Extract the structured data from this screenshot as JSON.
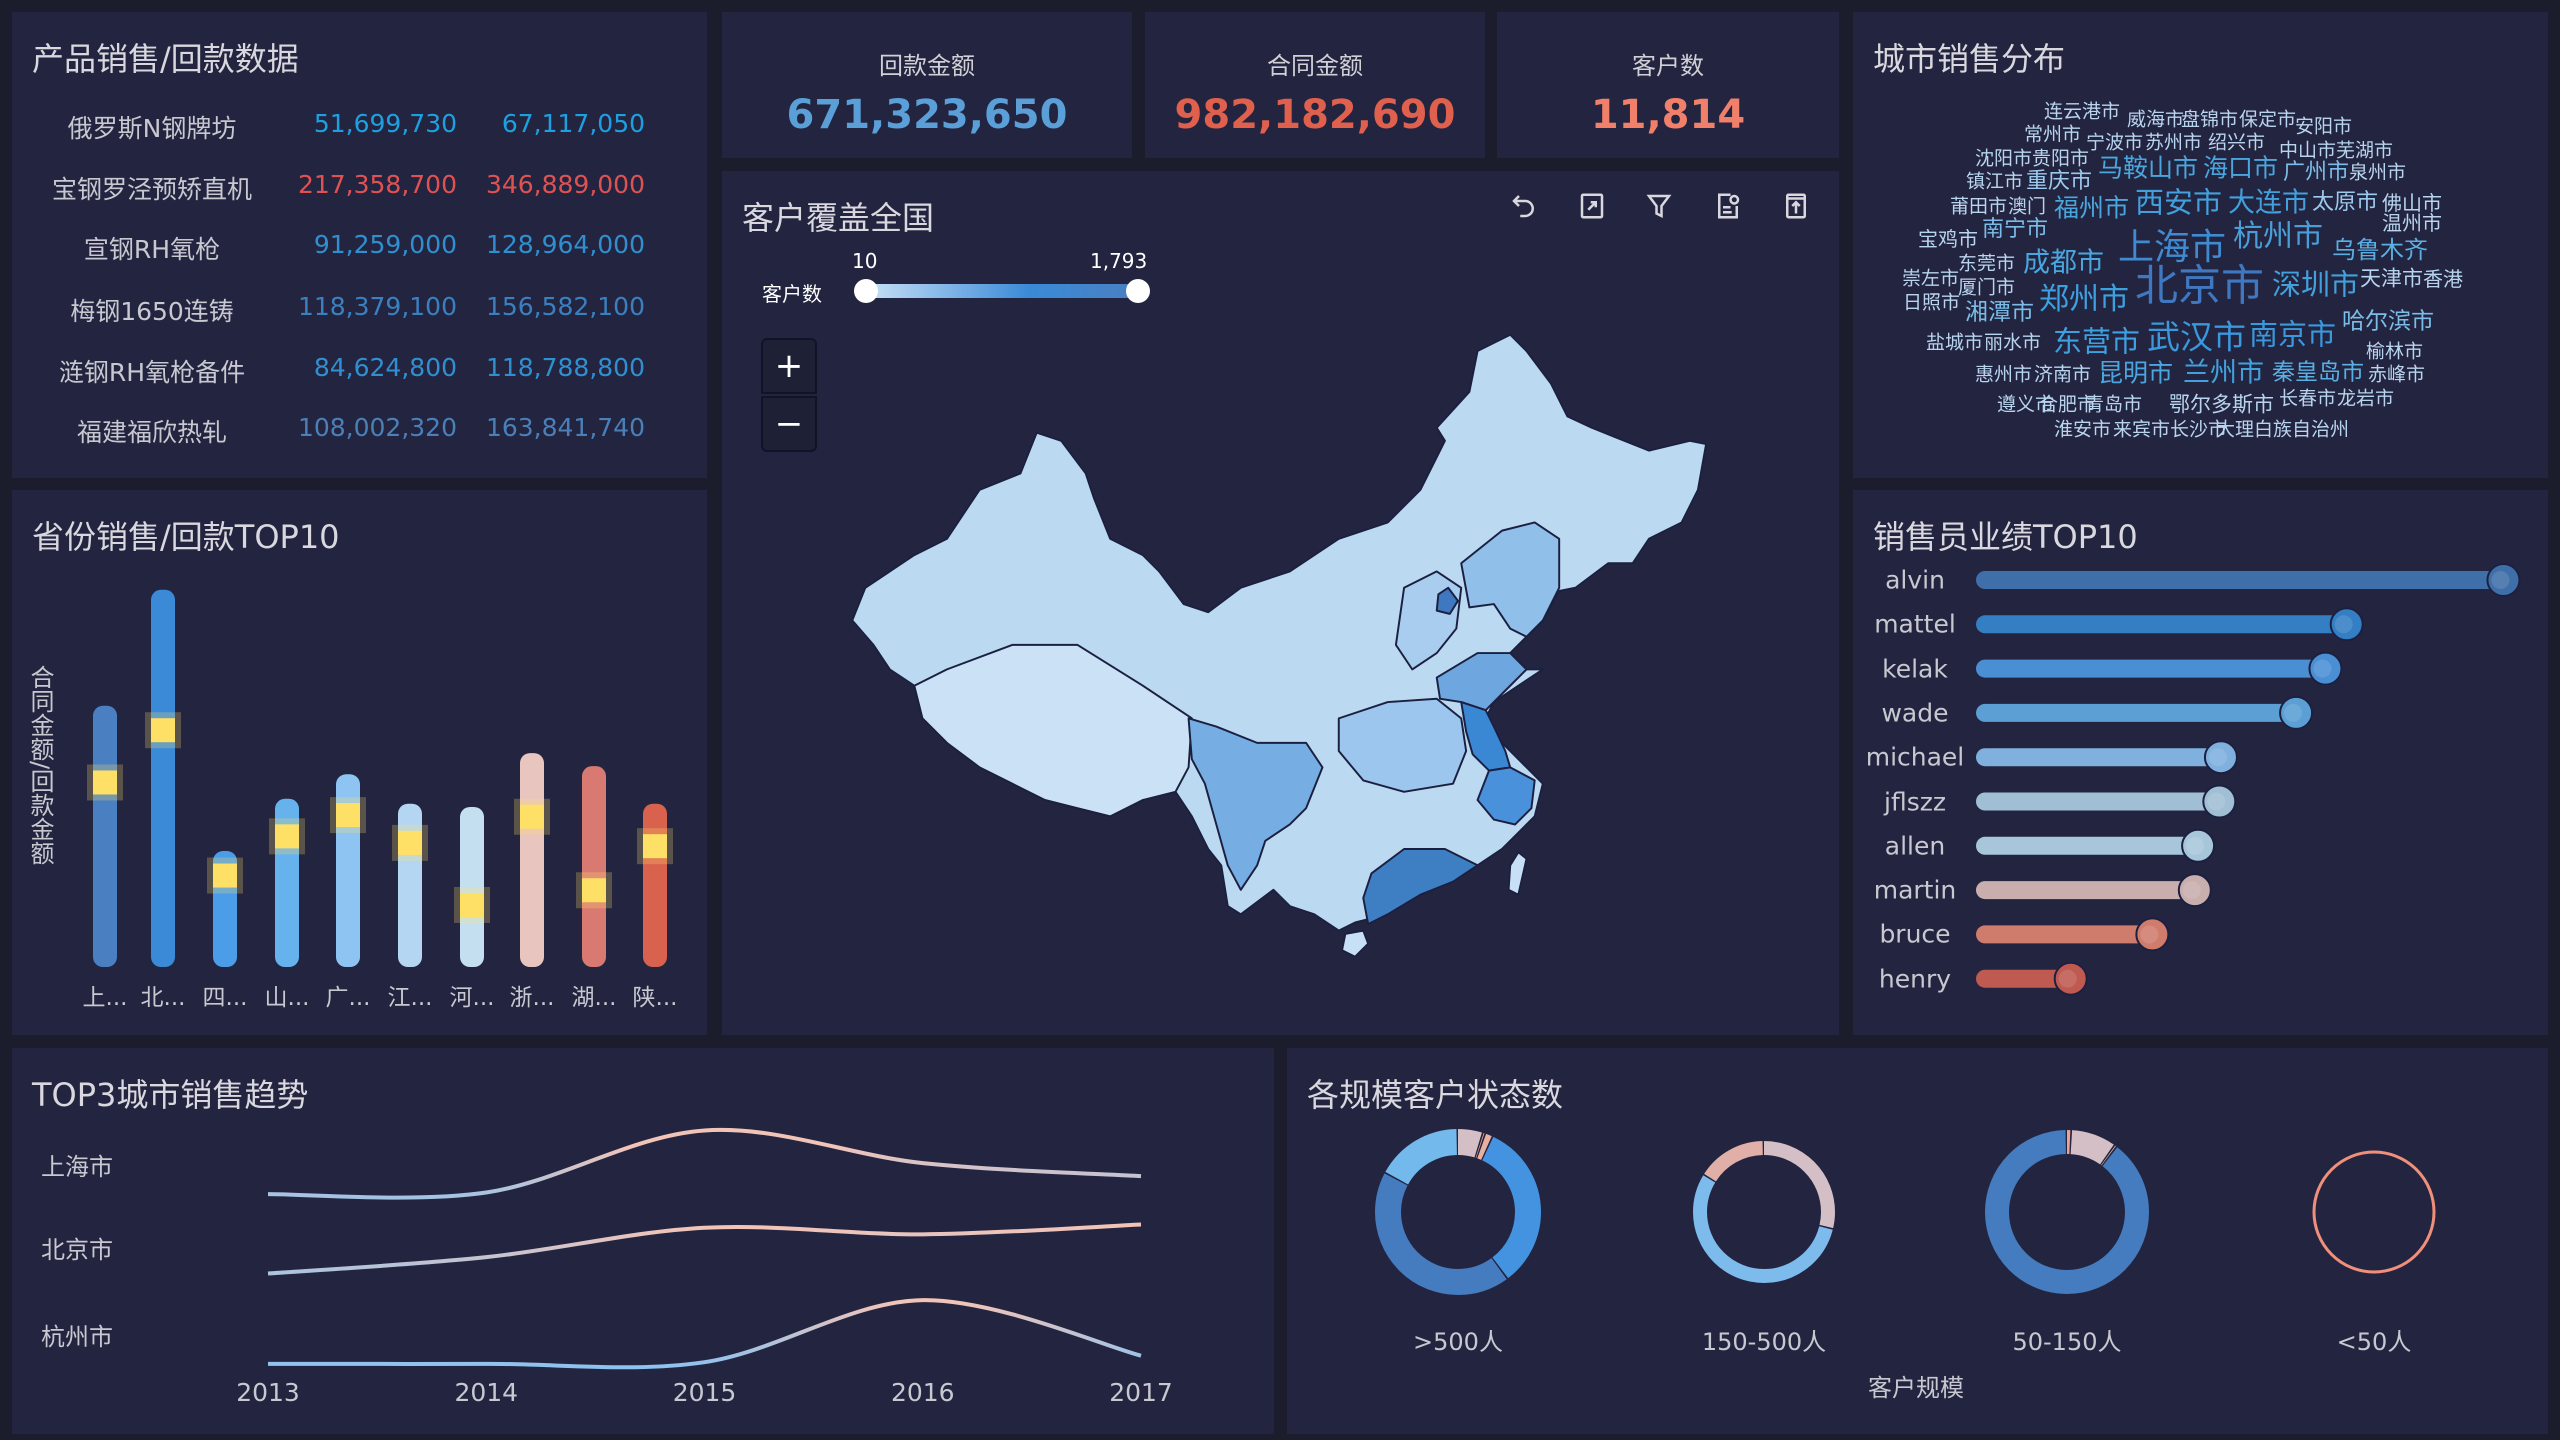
{
  "product_table": {
    "title": "产品销售/回款数据",
    "rows": [
      {
        "name": "俄罗斯N钢牌坊",
        "v1": "51,699,730",
        "v2": "67,117,050",
        "color": "#1ea0e0"
      },
      {
        "name": "宝钢罗泾预矫直机",
        "v1": "217,358,700",
        "v2": "346,889,000",
        "color": "#e05252"
      },
      {
        "name": "宣钢RH氧枪",
        "v1": "91,259,000",
        "v2": "128,964,000",
        "color": "#2f8fd0"
      },
      {
        "name": "梅钢1650连铸",
        "v1": "118,379,100",
        "v2": "156,582,100",
        "color": "#3a80c0"
      },
      {
        "name": "涟钢RH氧枪备件",
        "v1": "84,624,800",
        "v2": "118,788,800",
        "color": "#2f8fd0"
      },
      {
        "name": "福建福欣热轧",
        "v1": "108,002,320",
        "v2": "163,841,740",
        "color": "#4a7fb8"
      }
    ]
  },
  "kpis": [
    {
      "label": "回款金额",
      "value": "671,323,650",
      "color": "#5b9fd8"
    },
    {
      "label": "合同金额",
      "value": "982,182,690",
      "color": "#e0604e"
    },
    {
      "label": "客户数",
      "value": "11,814",
      "color": "#f0806a"
    }
  ],
  "map": {
    "title": "客户覆盖全国",
    "slider_label": "客户数",
    "slider_min": "10",
    "slider_max": "1,793",
    "zoom_in": "+",
    "zoom_out": "−",
    "tools": [
      "undo-icon",
      "expand-icon",
      "filter-icon",
      "data-view-icon",
      "export-icon"
    ]
  },
  "wordcloud": {
    "title": "城市销售分布",
    "words": [
      "连云港市",
      "威海市",
      "盘锦市",
      "保定市",
      "安阳市",
      "常州市",
      "宁波市",
      "苏州市",
      "绍兴市",
      "中山市",
      "芜湖市",
      "沈阳市",
      "贵阳市",
      "马鞍山市",
      "海口市",
      "广州市",
      "泉州市",
      "镇江市",
      "重庆市",
      "莆田市",
      "澳门",
      "福州市",
      "西安市",
      "大连市",
      "太原市",
      "佛山市",
      "温州市",
      "南宁市",
      "宝鸡市",
      "上海市",
      "杭州市",
      "乌鲁木齐",
      "东莞市",
      "成都市",
      "崇左市",
      "北京市",
      "深圳市",
      "天津市",
      "香港",
      "厦门市",
      "日照市",
      "郑州市",
      "湘潭市",
      "哈尔滨市",
      "东营市",
      "武汉市",
      "南京市",
      "盐城市",
      "丽水市",
      "榆林市",
      "惠州市",
      "济南市",
      "昆明市",
      "兰州市",
      "秦皇岛市",
      "赤峰市",
      "遵义市",
      "合肥市",
      "青岛市",
      "鄂尔多斯市",
      "长春市",
      "龙岩市",
      "淮安市",
      "来宾市",
      "长沙市",
      "大理白族自治州"
    ]
  },
  "chart_data": [
    {
      "type": "bar",
      "title": "省份销售/回款TOP10",
      "ylabel": "合同金额/回款金额",
      "categories": [
        "上...",
        "北...",
        "四...",
        "山...",
        "广...",
        "江...",
        "河...",
        "浙...",
        "湖...",
        "陕..."
      ],
      "series": [
        {
          "values": [
            160,
            231,
            71,
            103,
            118,
            100,
            98,
            131,
            123,
            100
          ],
          "colors": [
            "#4a7fc1",
            "#3a8ad8",
            "#4a9de6",
            "#66b2ec",
            "#8ec4f2",
            "#b5d6f2",
            "#c4e0f0",
            "#e8c6bf",
            "#d97a72",
            "#d9624f"
          ]
        },
        {
          "values": [
            113,
            145,
            56,
            80,
            93,
            76,
            38,
            92,
            47,
            74
          ],
          "color": "#ffe066"
        }
      ]
    },
    {
      "type": "bar",
      "orientation": "horizontal",
      "title": "销售员业绩TOP10",
      "categories": [
        "alvin",
        "mattel",
        "kelak",
        "wade",
        "michael",
        "jflszz",
        "allen",
        "martin",
        "bruce",
        "henry"
      ],
      "values": [
        323,
        227,
        214,
        196,
        150,
        149,
        136,
        134,
        108,
        58
      ],
      "colors": [
        "#3f6fa8",
        "#347ec4",
        "#4a8fd4",
        "#5b9fd4",
        "#7fb0de",
        "#a0bed4",
        "#a8c6da",
        "#c9aeae",
        "#d07c6d",
        "#bf5a50"
      ]
    },
    {
      "type": "line",
      "title": "TOP3城市销售趋势",
      "x": [
        "2013",
        "2014",
        "2015",
        "2016",
        "2017"
      ],
      "series": [
        {
          "name": "上海市",
          "values": [
            14,
            15,
            53,
            33,
            25
          ]
        },
        {
          "name": "北京市",
          "values": [
            15,
            25,
            43,
            39,
            45
          ]
        },
        {
          "name": "杭州市",
          "values": [
            5,
            5,
            6,
            44,
            10
          ]
        }
      ]
    },
    {
      "type": "pie",
      "title": "各规模客户状态数",
      "xlabel": "客户规模",
      "groups": [
        {
          "label": ">500人",
          "slices": [
            0.05,
            0.005,
            0.015,
            0.33,
            0.43,
            0.17
          ],
          "colors": [
            "#d4bfc6",
            "#f0a090",
            "#e8b0a0",
            "#4393e0",
            "#447cbf",
            "#74b9ec"
          ]
        },
        {
          "label": "150-500人",
          "slices": [
            0.29,
            0.55,
            0.16
          ],
          "colors": [
            "#d4bfc6",
            "#7dbbec",
            "#e0afa8"
          ]
        },
        {
          "label": "50-150人",
          "slices": [
            0.01,
            0.09,
            0.005,
            0.895
          ],
          "colors": [
            "#f0a090",
            "#d4bfc6",
            "#e8b0a0",
            "#447cbf"
          ]
        },
        {
          "label": "<50人",
          "slices": [
            1
          ],
          "colors": [
            "#f0907a"
          ]
        }
      ]
    }
  ]
}
